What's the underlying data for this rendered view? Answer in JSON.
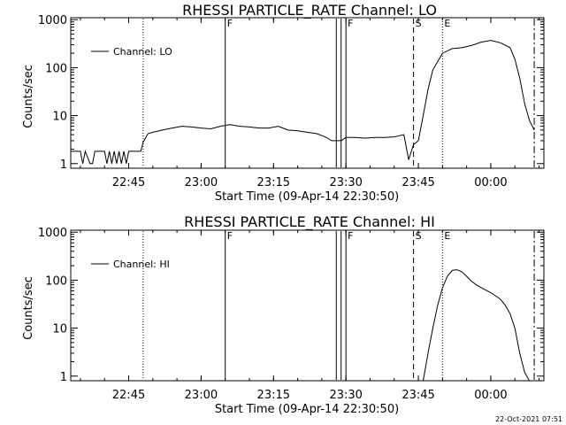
{
  "footer": {
    "timestamp": "22-Oct-2021 07:51"
  },
  "chart_data": [
    {
      "type": "line",
      "title": "RHESSI PARTICLE_RATE Channel: LO",
      "xlabel": "Start Time (09-Apr-14 22:30:50)",
      "ylabel": "Counts/sec",
      "yscale": "log",
      "ylim": [
        0.8,
        1100
      ],
      "xlim": [
        "22:33",
        "00:11"
      ],
      "xticks": [
        "22:45",
        "23:00",
        "23:15",
        "23:30",
        "23:45",
        "00:00"
      ],
      "yticks": [
        "1",
        "10",
        "100",
        "1000"
      ],
      "legend": "top-left",
      "grid": false,
      "markers": [
        {
          "time": "22:48",
          "label": "",
          "style": "dotted"
        },
        {
          "time": "23:05",
          "label": "F",
          "style": "solid"
        },
        {
          "time": "23:28",
          "label": "",
          "style": "solid"
        },
        {
          "time": "23:29",
          "label": "",
          "style": "solid"
        },
        {
          "time": "23:30",
          "label": "F",
          "style": "solid"
        },
        {
          "time": "23:44",
          "label": "S",
          "style": "dashed"
        },
        {
          "time": "23:50",
          "label": "E",
          "style": "dotted"
        },
        {
          "time": "00:09",
          "label": "",
          "style": "dashdot"
        }
      ],
      "series": [
        {
          "name": "Channel: LO",
          "x": [
            "22:33",
            "22:34",
            "22:35",
            "22:35.5",
            "22:36",
            "22:37",
            "22:37.5",
            "22:38",
            "22:39",
            "22:40",
            "22:40.5",
            "22:41",
            "22:41.5",
            "22:42",
            "22:42.5",
            "22:43",
            "22:43.5",
            "22:44",
            "22:44.5",
            "22:45",
            "22:46",
            "22:47",
            "22:47.5",
            "22:48",
            "22:49",
            "22:50",
            "22:52",
            "22:54",
            "22:56",
            "22:58",
            "23:00",
            "23:02",
            "23:04",
            "23:06",
            "23:08",
            "23:10",
            "23:12",
            "23:14",
            "23:16",
            "23:18",
            "23:20",
            "23:22",
            "23:24",
            "23:26",
            "23:27",
            "23:28",
            "23:29",
            "23:30",
            "23:32",
            "23:34",
            "23:36",
            "23:38",
            "23:40",
            "23:41",
            "23:42",
            "23:43",
            "23:44",
            "23:45",
            "23:46",
            "23:47",
            "23:48",
            "23:50",
            "23:52",
            "23:54",
            "23:56",
            "23:58",
            "00:00",
            "00:02",
            "00:04",
            "00:05",
            "00:06",
            "00:07",
            "00:08",
            "00:09"
          ],
          "y": [
            1.8,
            1.8,
            1.8,
            1,
            1.8,
            1,
            1,
            1.8,
            1.8,
            1.8,
            1,
            1.8,
            1,
            1.8,
            1,
            1.8,
            1,
            1.8,
            1,
            1.8,
            1.8,
            1.8,
            1.8,
            2.8,
            4.2,
            4.5,
            5,
            5.5,
            6,
            5.8,
            5.5,
            5.3,
            6,
            6.5,
            6,
            5.8,
            5.5,
            5.5,
            6,
            5,
            4.8,
            4.5,
            4.2,
            3.5,
            3,
            3,
            3,
            3.5,
            3.5,
            3.4,
            3.5,
            3.5,
            3.6,
            3.8,
            4,
            1.2,
            2.5,
            3,
            10,
            35,
            90,
            200,
            250,
            260,
            290,
            340,
            370,
            330,
            260,
            150,
            60,
            18,
            8,
            5
          ]
        }
      ]
    },
    {
      "type": "line",
      "title": "RHESSI PARTICLE_RATE Channel: HI",
      "xlabel": "Start Time (09-Apr-14 22:30:50)",
      "ylabel": "Counts/sec",
      "yscale": "log",
      "ylim": [
        0.8,
        1100
      ],
      "xlim": [
        "22:33",
        "00:11"
      ],
      "xticks": [
        "22:45",
        "23:00",
        "23:15",
        "23:30",
        "23:45",
        "00:00"
      ],
      "yticks": [
        "1",
        "10",
        "100",
        "1000"
      ],
      "legend": "top-left",
      "grid": false,
      "markers": [
        {
          "time": "22:48",
          "label": "",
          "style": "dotted"
        },
        {
          "time": "23:05",
          "label": "F",
          "style": "solid"
        },
        {
          "time": "23:28",
          "label": "",
          "style": "solid"
        },
        {
          "time": "23:29",
          "label": "",
          "style": "solid"
        },
        {
          "time": "23:30",
          "label": "F",
          "style": "solid"
        },
        {
          "time": "23:44",
          "label": "S",
          "style": "dashed"
        },
        {
          "time": "23:50",
          "label": "E",
          "style": "dotted"
        },
        {
          "time": "00:09",
          "label": "",
          "style": "dashdot"
        }
      ],
      "series": [
        {
          "name": "Channel: HI",
          "x": [
            "23:46",
            "23:47",
            "23:48",
            "23:49",
            "23:50",
            "23:51",
            "23:52",
            "23:53",
            "23:54",
            "23:55",
            "23:56",
            "23:57",
            "23:58",
            "00:00",
            "00:02",
            "00:03",
            "00:04",
            "00:05",
            "00:06",
            "00:07",
            "00:08"
          ],
          "y": [
            0.8,
            3,
            10,
            30,
            70,
            120,
            160,
            165,
            150,
            120,
            95,
            80,
            70,
            55,
            40,
            30,
            20,
            10,
            3,
            1.2,
            0.8
          ]
        }
      ]
    }
  ]
}
